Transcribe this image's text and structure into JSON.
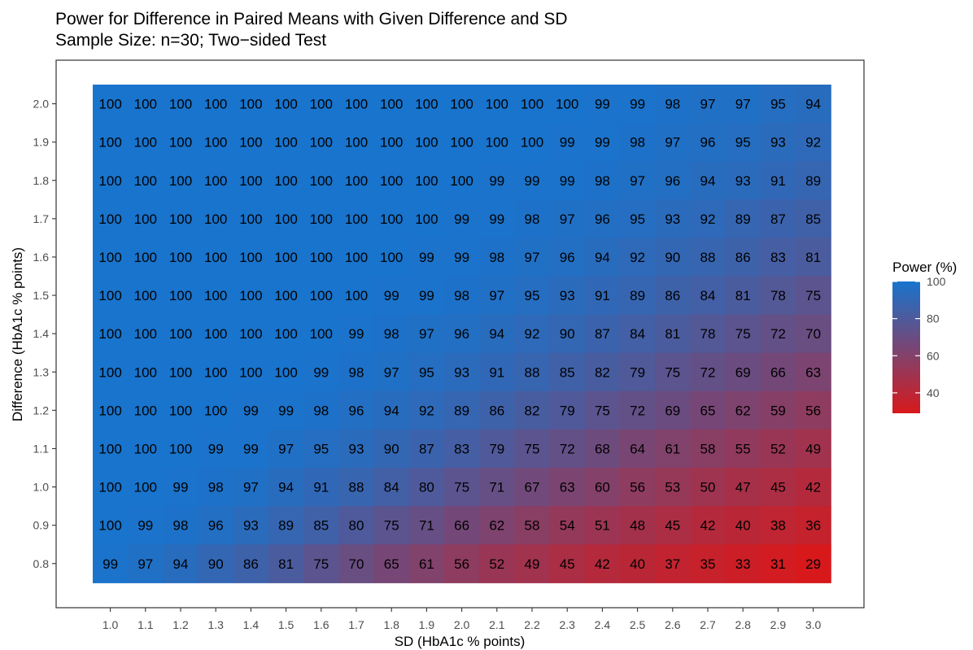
{
  "chart_data": {
    "type": "heatmap",
    "title": "Power for Difference in Paired Means with Given Difference and SD",
    "subtitle": "Sample Size: n=30; Two−sided Test",
    "xlabel": "SD (HbA1c % points)",
    "ylabel": "Difference (HbA1c % points)",
    "x": [
      "1.0",
      "1.1",
      "1.2",
      "1.3",
      "1.4",
      "1.5",
      "1.6",
      "1.7",
      "1.8",
      "1.9",
      "2.0",
      "2.1",
      "2.2",
      "2.3",
      "2.4",
      "2.5",
      "2.6",
      "2.7",
      "2.8",
      "2.9",
      "3.0"
    ],
    "y": [
      "2.0",
      "1.9",
      "1.8",
      "1.7",
      "1.6",
      "1.5",
      "1.4",
      "1.3",
      "1.2",
      "1.1",
      "1.0",
      "0.9",
      "0.8"
    ],
    "values": [
      [
        100,
        100,
        100,
        100,
        100,
        100,
        100,
        100,
        100,
        100,
        100,
        100,
        100,
        100,
        99,
        99,
        98,
        97,
        97,
        95,
        94
      ],
      [
        100,
        100,
        100,
        100,
        100,
        100,
        100,
        100,
        100,
        100,
        100,
        100,
        100,
        99,
        99,
        98,
        97,
        96,
        95,
        93,
        92
      ],
      [
        100,
        100,
        100,
        100,
        100,
        100,
        100,
        100,
        100,
        100,
        100,
        99,
        99,
        99,
        98,
        97,
        96,
        94,
        93,
        91,
        89
      ],
      [
        100,
        100,
        100,
        100,
        100,
        100,
        100,
        100,
        100,
        100,
        99,
        99,
        98,
        97,
        96,
        95,
        93,
        92,
        89,
        87,
        85
      ],
      [
        100,
        100,
        100,
        100,
        100,
        100,
        100,
        100,
        100,
        99,
        99,
        98,
        97,
        96,
        94,
        92,
        90,
        88,
        86,
        83,
        81
      ],
      [
        100,
        100,
        100,
        100,
        100,
        100,
        100,
        100,
        99,
        99,
        98,
        97,
        95,
        93,
        91,
        89,
        86,
        84,
        81,
        78,
        75
      ],
      [
        100,
        100,
        100,
        100,
        100,
        100,
        100,
        99,
        98,
        97,
        96,
        94,
        92,
        90,
        87,
        84,
        81,
        78,
        75,
        72,
        70
      ],
      [
        100,
        100,
        100,
        100,
        100,
        100,
        99,
        98,
        97,
        95,
        93,
        91,
        88,
        85,
        82,
        79,
        75,
        72,
        69,
        66,
        63
      ],
      [
        100,
        100,
        100,
        100,
        99,
        99,
        98,
        96,
        94,
        92,
        89,
        86,
        82,
        79,
        75,
        72,
        69,
        65,
        62,
        59,
        56
      ],
      [
        100,
        100,
        100,
        99,
        99,
        97,
        95,
        93,
        90,
        87,
        83,
        79,
        75,
        72,
        68,
        64,
        61,
        58,
        55,
        52,
        49
      ],
      [
        100,
        100,
        99,
        98,
        97,
        94,
        91,
        88,
        84,
        80,
        75,
        71,
        67,
        63,
        60,
        56,
        53,
        50,
        47,
        45,
        42
      ],
      [
        100,
        99,
        98,
        96,
        93,
        89,
        85,
        80,
        75,
        71,
        66,
        62,
        58,
        54,
        51,
        48,
        45,
        42,
        40,
        38,
        36
      ],
      [
        99,
        97,
        94,
        90,
        86,
        81,
        75,
        70,
        65,
        61,
        56,
        52,
        49,
        45,
        42,
        40,
        37,
        35,
        33,
        31,
        29
      ]
    ],
    "legend": {
      "title": "Power (%)",
      "ticks": [
        "40",
        "60",
        "80",
        "100"
      ],
      "low_color": "#d7191c",
      "high_color": "#1874cd",
      "range": [
        29,
        100
      ]
    },
    "grid": false
  }
}
